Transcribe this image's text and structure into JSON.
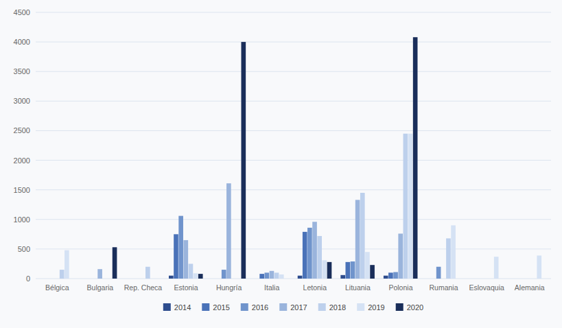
{
  "chart_data": {
    "type": "bar",
    "categories": [
      "Bélgica",
      "Bulgaria",
      "Rep. Checa",
      "Estonia",
      "Hungría",
      "Italia",
      "Letonia",
      "Lituania",
      "Polonia",
      "Rumania",
      "Eslovaquia",
      "Alemania"
    ],
    "series": [
      {
        "name": "2014",
        "color": "#2e4d8e",
        "values": [
          0,
          0,
          0,
          50,
          0,
          0,
          50,
          60,
          50,
          0,
          0,
          0
        ]
      },
      {
        "name": "2015",
        "color": "#4a72b8",
        "values": [
          0,
          0,
          0,
          750,
          0,
          80,
          790,
          280,
          100,
          0,
          0,
          0
        ]
      },
      {
        "name": "2016",
        "color": "#7094cc",
        "values": [
          0,
          0,
          0,
          1060,
          150,
          100,
          860,
          290,
          110,
          200,
          0,
          0
        ]
      },
      {
        "name": "2017",
        "color": "#9ab4dc",
        "values": [
          0,
          160,
          0,
          650,
          1610,
          130,
          960,
          1330,
          760,
          0,
          0,
          0
        ]
      },
      {
        "name": "2018",
        "color": "#bdd0ec",
        "values": [
          150,
          0,
          200,
          250,
          0,
          100,
          720,
          1450,
          2450,
          680,
          0,
          0
        ]
      },
      {
        "name": "2019",
        "color": "#d5e2f4",
        "values": [
          480,
          0,
          0,
          90,
          0,
          70,
          310,
          450,
          2450,
          900,
          370,
          390
        ]
      },
      {
        "name": "2020",
        "color": "#1a2e5a",
        "values": [
          0,
          530,
          0,
          80,
          4000,
          0,
          280,
          230,
          4080,
          0,
          0,
          0
        ]
      }
    ],
    "ylim": [
      0,
      4500
    ],
    "yticks": [
      0,
      500,
      1000,
      1500,
      2000,
      2500,
      3000,
      3500,
      4000,
      4500
    ],
    "grid": true,
    "legend": "bottom"
  }
}
